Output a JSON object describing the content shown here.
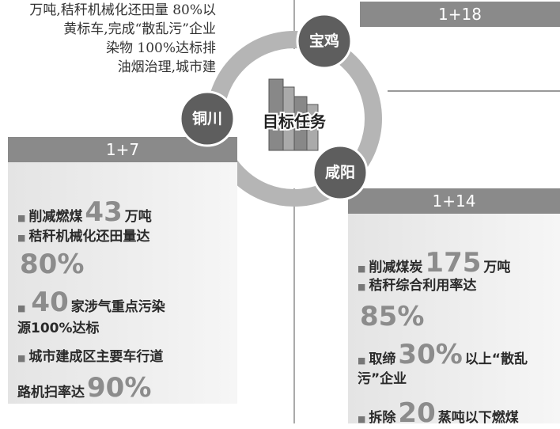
{
  "top_text": [
    "万吨,秸秆机械化还田量 80%以",
    "黄标车,完成“散乱污”企业",
    "染物 100%达标排",
    "油烟治理,城市建"
  ],
  "center": "目标任务",
  "cities": [
    {
      "name": "宝鸡",
      "tag": "1+18"
    },
    {
      "name": "铜川",
      "tag": "1+7"
    },
    {
      "name": "咸阳",
      "tag": "1+14"
    }
  ],
  "left_panel": [
    {
      "bullet": true,
      "parts": [
        {
          "text": "削减燃煤"
        },
        {
          "text": "43",
          "big": true
        },
        {
          "text": "万吨"
        }
      ]
    },
    {
      "bullet": true,
      "parts": [
        {
          "text": "秸秆机械化还田量达"
        }
      ]
    },
    {
      "bullet": false,
      "parts": [
        {
          "text": "80%",
          "big": true
        }
      ]
    },
    {
      "bullet": true,
      "parts": [
        {
          "text": "40",
          "big": true
        },
        {
          "text": "家涉气重点污染"
        }
      ]
    },
    {
      "bullet": false,
      "parts": [
        {
          "text": "源100%达标"
        }
      ]
    },
    {
      "bullet": true,
      "parts": [
        {
          "text": "城市建成区主要车行道"
        }
      ]
    },
    {
      "bullet": false,
      "parts": [
        {
          "text": "路机扫率达"
        },
        {
          "text": "90%",
          "big": true
        }
      ]
    }
  ],
  "right_panel": [
    {
      "bullet": true,
      "parts": [
        {
          "text": "削减煤炭"
        },
        {
          "text": "175",
          "big": true
        },
        {
          "text": "万吨"
        }
      ]
    },
    {
      "bullet": true,
      "parts": [
        {
          "text": "秸秆综合利用率达"
        }
      ]
    },
    {
      "bullet": false,
      "parts": [
        {
          "text": "85%",
          "big": true
        }
      ]
    },
    {
      "bullet": true,
      "parts": [
        {
          "text": "取缔"
        },
        {
          "text": "30%",
          "big": true
        },
        {
          "text": "以上“散乱"
        }
      ]
    },
    {
      "bullet": false,
      "parts": [
        {
          "text": "污”企业"
        }
      ]
    },
    {
      "bullet": true,
      "parts": [
        {
          "text": "拆除"
        },
        {
          "text": "20",
          "big": true
        },
        {
          "text": "蒸吨以下燃煤"
        }
      ]
    }
  ]
}
